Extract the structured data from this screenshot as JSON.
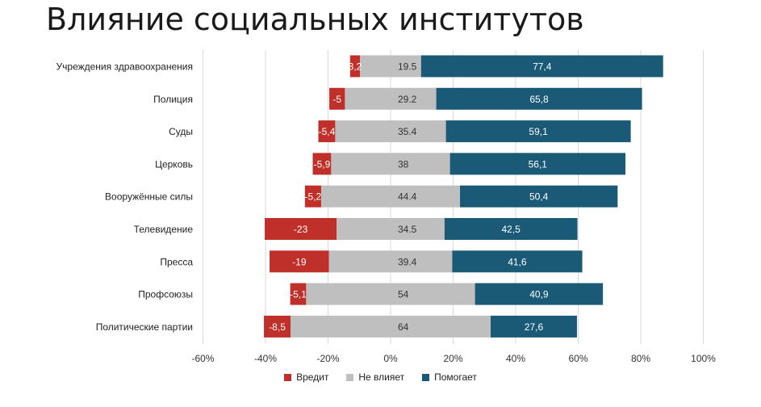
{
  "chart_data": {
    "type": "bar",
    "orientation": "horizontal",
    "stacked": true,
    "title": "Влияние социальных институтов",
    "categories": [
      "Учреждения здравоохранения",
      "Полиция",
      "Суды",
      "Церковь",
      "Вооружённые силы",
      "Телевидение",
      "Пресса",
      "Профсоюзы",
      "Политические партии"
    ],
    "series": [
      {
        "name": "Вредит",
        "values": [
          3.2,
          5,
          5.4,
          5.9,
          5.2,
          23,
          19,
          5.1,
          8.5
        ],
        "labels": [
          "3,2",
          "-5",
          "-5,4",
          "-5,9",
          "-5,2",
          "-23",
          "-19",
          "-5,1",
          "-8,5"
        ],
        "color": "#c0302b"
      },
      {
        "name": "Не влияет",
        "values": [
          19.5,
          29.2,
          35.4,
          38,
          44.4,
          34.5,
          39.4,
          54,
          64
        ],
        "labels": [
          "19.5",
          "29.2",
          "35.4",
          "38",
          "44.4",
          "34.5",
          "39.4",
          "54",
          "64"
        ],
        "color": "#bfbfbf"
      },
      {
        "name": "Помогает",
        "values": [
          77.4,
          65.8,
          59.1,
          56.1,
          50.4,
          42.5,
          41.6,
          40.9,
          27.6
        ],
        "labels": [
          "77,4",
          "65,8",
          "59,1",
          "56,1",
          "50,4",
          "42,5",
          "41,6",
          "40,9",
          "27,6"
        ],
        "color": "#1a5a77"
      }
    ],
    "xlim": [
      -60,
      100
    ],
    "x_ticks": [
      "-60%",
      "-40%",
      "-20%",
      "0%",
      "20%",
      "40%",
      "60%",
      "80%",
      "100%"
    ],
    "grid": true,
    "legend_position": "bottom"
  }
}
